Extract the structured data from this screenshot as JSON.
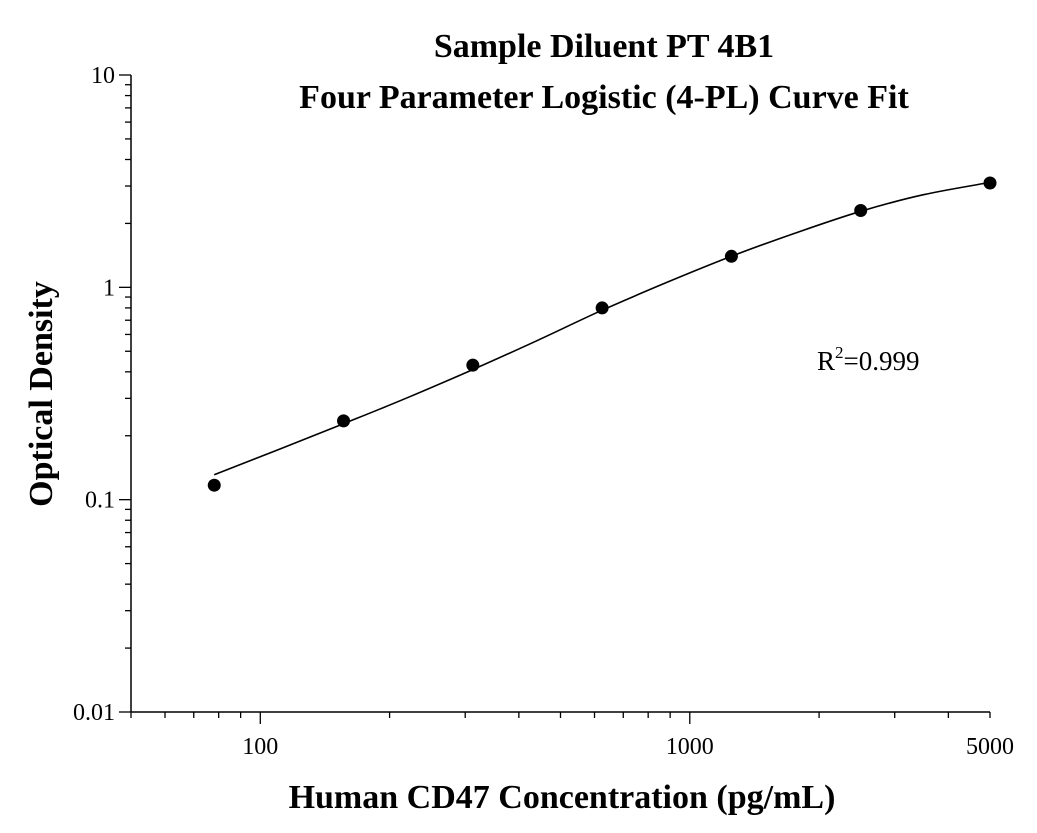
{
  "chart_data": {
    "type": "scatter",
    "title": [
      "Sample Diluent PT 4B1",
      "Four Parameter Logistic (4-PL) Curve Fit"
    ],
    "xlabel": "Human CD47 Concentration (pg/mL)",
    "ylabel": "Optical Density",
    "xscale": "log",
    "yscale": "log",
    "xlim": [
      50,
      5000
    ],
    "ylim": [
      0.01,
      10
    ],
    "xticks": [
      {
        "value": 100,
        "label": "100"
      },
      {
        "value": 1000,
        "label": "1000"
      },
      {
        "value": 5000,
        "label": "5000"
      }
    ],
    "yticks": [
      {
        "value": 0.01,
        "label": "0.01"
      },
      {
        "value": 0.1,
        "label": "0.1"
      },
      {
        "value": 1,
        "label": "1"
      },
      {
        "value": 10,
        "label": "10"
      }
    ],
    "grid": false,
    "points": [
      {
        "x": 78.125,
        "y": 0.117
      },
      {
        "x": 156.25,
        "y": 0.235
      },
      {
        "x": 312.5,
        "y": 0.43
      },
      {
        "x": 625,
        "y": 0.8
      },
      {
        "x": 1250,
        "y": 1.4
      },
      {
        "x": 2500,
        "y": 2.3
      },
      {
        "x": 5000,
        "y": 3.1
      }
    ],
    "fit_curve": [
      {
        "x": 78.125,
        "y": 0.131
      },
      {
        "x": 110,
        "y": 0.172
      },
      {
        "x": 156.25,
        "y": 0.228
      },
      {
        "x": 220,
        "y": 0.302
      },
      {
        "x": 312.5,
        "y": 0.41
      },
      {
        "x": 440,
        "y": 0.56
      },
      {
        "x": 625,
        "y": 0.78
      },
      {
        "x": 880,
        "y": 1.05
      },
      {
        "x": 1250,
        "y": 1.4
      },
      {
        "x": 1760,
        "y": 1.8
      },
      {
        "x": 2500,
        "y": 2.28
      },
      {
        "x": 3500,
        "y": 2.73
      },
      {
        "x": 5000,
        "y": 3.12
      }
    ],
    "annotation": {
      "prefix": "R",
      "sup": "2",
      "value": "=0.999"
    },
    "colors": {
      "points": "#000000",
      "curve": "#000000",
      "axes": "#000000"
    }
  }
}
